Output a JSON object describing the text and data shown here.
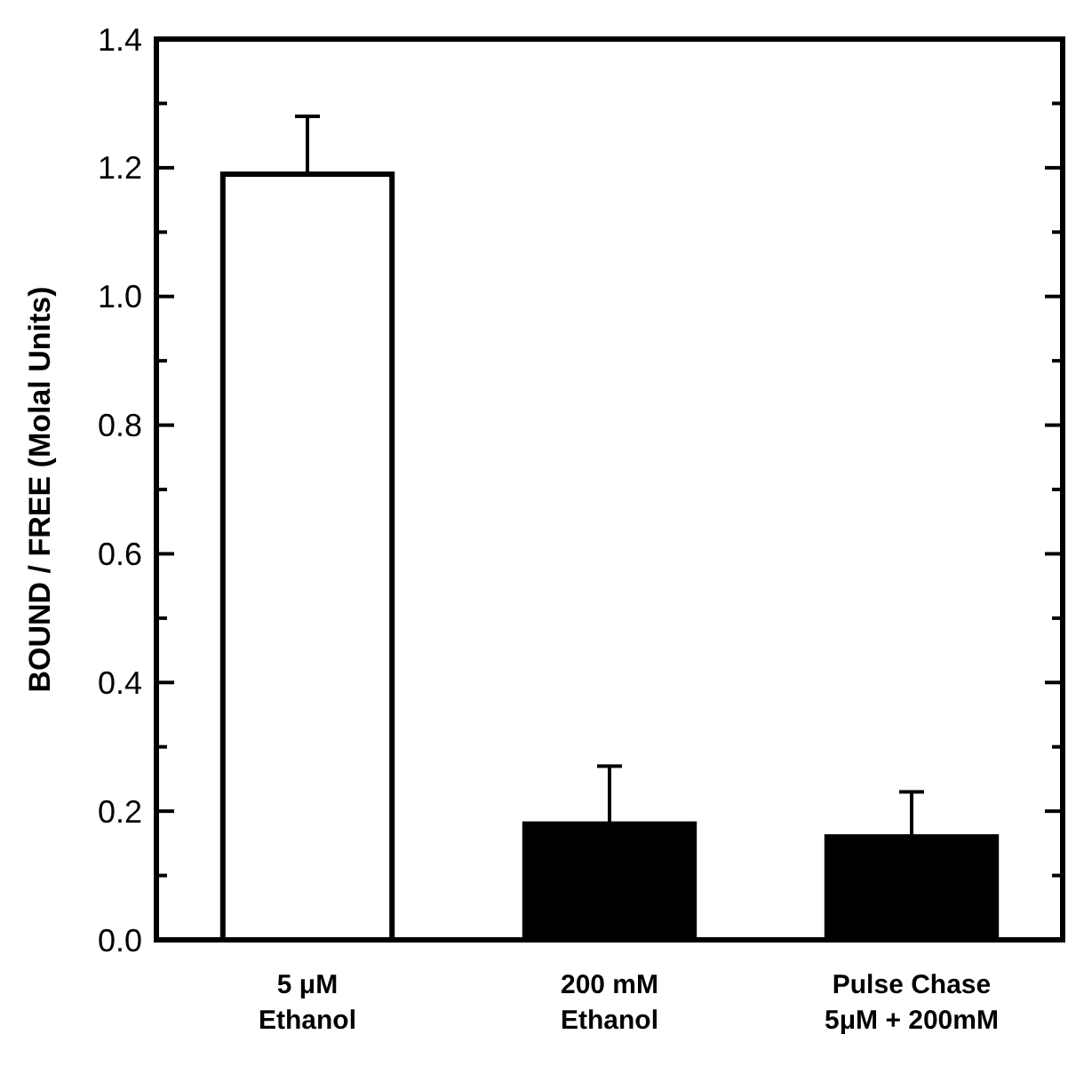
{
  "chart_data": {
    "type": "bar",
    "ylabel": "BOUND / FREE (Molal Units)",
    "categories": [
      "5 μM\nEthanol",
      "200 mM\nEthanol",
      "Pulse Chase\n5μM + 200mM"
    ],
    "values": [
      1.19,
      0.18,
      0.16
    ],
    "colors": [
      "#ffffff",
      "#000000",
      "#000000"
    ],
    "errors": [
      [
        1.19,
        1.28
      ],
      [
        0.18,
        0.27
      ],
      [
        0.16,
        0.23
      ]
    ],
    "ylim": [
      0,
      1.4
    ],
    "yticks": [
      {
        "value": 0,
        "label": "0.0"
      },
      {
        "value": 0.1,
        "label": null
      },
      0.2,
      {
        "value": 0.3,
        "label": null
      },
      0.4,
      {
        "value": 0.5,
        "label": null
      },
      0.6,
      {
        "value": 0.7,
        "label": null
      },
      0.8,
      {
        "value": 0.9,
        "label": null
      },
      {
        "value": 1,
        "label": "1.0"
      },
      {
        "value": 1.1,
        "label": null
      },
      1.2,
      {
        "value": 1.3,
        "label": null
      },
      1.4
    ]
  }
}
